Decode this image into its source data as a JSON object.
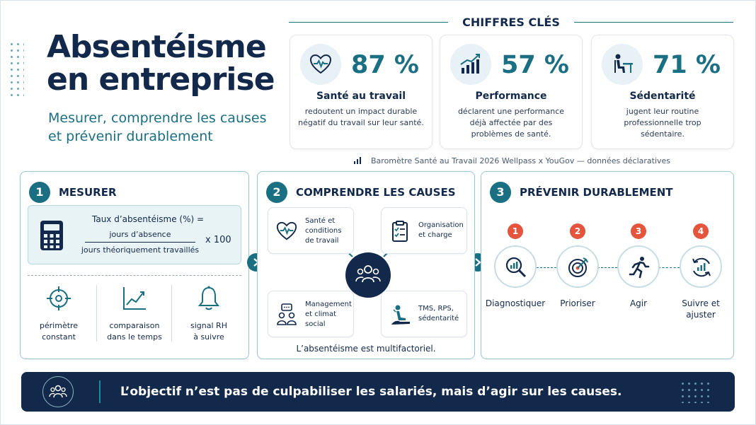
{
  "header": {
    "title_line1": "Absentéisme",
    "title_line2": "en entreprise",
    "subtitle_line1": "Mesurer, comprendre les causes",
    "subtitle_line2": "et prévenir durablement"
  },
  "key_figures": {
    "title": "CHIFFRES CLÉS",
    "cards": [
      {
        "icon": "heart-pulse-icon",
        "value": "87 %",
        "label": "Santé au travail",
        "desc": [
          "redoutent un impact durable",
          "négatif du travail sur leur santé."
        ]
      },
      {
        "icon": "bar-chart-growth-icon",
        "value": "57 %",
        "label": "Performance",
        "desc": [
          "déclarent une performance",
          "déjà affectée par des",
          "problèmes de santé."
        ]
      },
      {
        "icon": "desk-worker-icon",
        "value": "71 %",
        "label": "Sédentarité",
        "desc": [
          "jugent leur routine",
          "professionnelle trop",
          "sédentaire."
        ]
      }
    ],
    "source": "Baromètre Santé au Travail 2026 Wellpass x YouGov — données déclaratives"
  },
  "measure": {
    "number": "1",
    "title": "MESURER",
    "formula": {
      "label": "Taux d’absentéisme (%) =",
      "numerator": "jours d’absence",
      "denominator": "jours théoriquement travaillés",
      "multiplier": "x 100"
    },
    "items": [
      {
        "icon": "target-crosshair-icon",
        "line1": "périmètre",
        "line2": "constant"
      },
      {
        "icon": "trend-chart-icon",
        "line1": "comparaison",
        "line2": "dans le temps"
      },
      {
        "icon": "bell-icon",
        "line1": "signal RH",
        "line2": "à suivre"
      }
    ]
  },
  "causes": {
    "number": "2",
    "title": "COMPRENDRE LES CAUSES",
    "items": [
      {
        "icon": "heart-pulse-icon",
        "lines": [
          "Santé et",
          "conditions",
          "de travail"
        ]
      },
      {
        "icon": "clipboard-checklist-icon",
        "lines": [
          "Organisation",
          "et charge"
        ]
      },
      {
        "icon": "team-chat-icon",
        "lines": [
          "Management",
          "et climat",
          "social"
        ]
      },
      {
        "icon": "person-stress-icon",
        "lines": [
          "TMS, RPS,",
          "sédentarité"
        ]
      }
    ],
    "footer": "L’absentéisme est multifactoriel."
  },
  "prevent": {
    "number": "3",
    "title": "PRÉVENIR DURABLEMENT",
    "steps": [
      {
        "num": "1",
        "icon": "magnifier-chart-icon",
        "lines": [
          "Diagnostiquer"
        ]
      },
      {
        "num": "2",
        "icon": "target-arrow-icon",
        "lines": [
          "Prioriser"
        ]
      },
      {
        "num": "3",
        "icon": "running-person-icon",
        "lines": [
          "Agir"
        ]
      },
      {
        "num": "4",
        "icon": "cycle-chart-icon",
        "lines": [
          "Suivre et",
          "ajuster"
        ]
      }
    ]
  },
  "banner": {
    "text": "L’objectif n’est pas de culpabiliser les salariés, mais d’agir sur les causes."
  },
  "colors": {
    "navy": "#13294b",
    "teal": "#1b6f82",
    "accent_red": "#e5553e",
    "light_teal": "#e8f3f6"
  }
}
